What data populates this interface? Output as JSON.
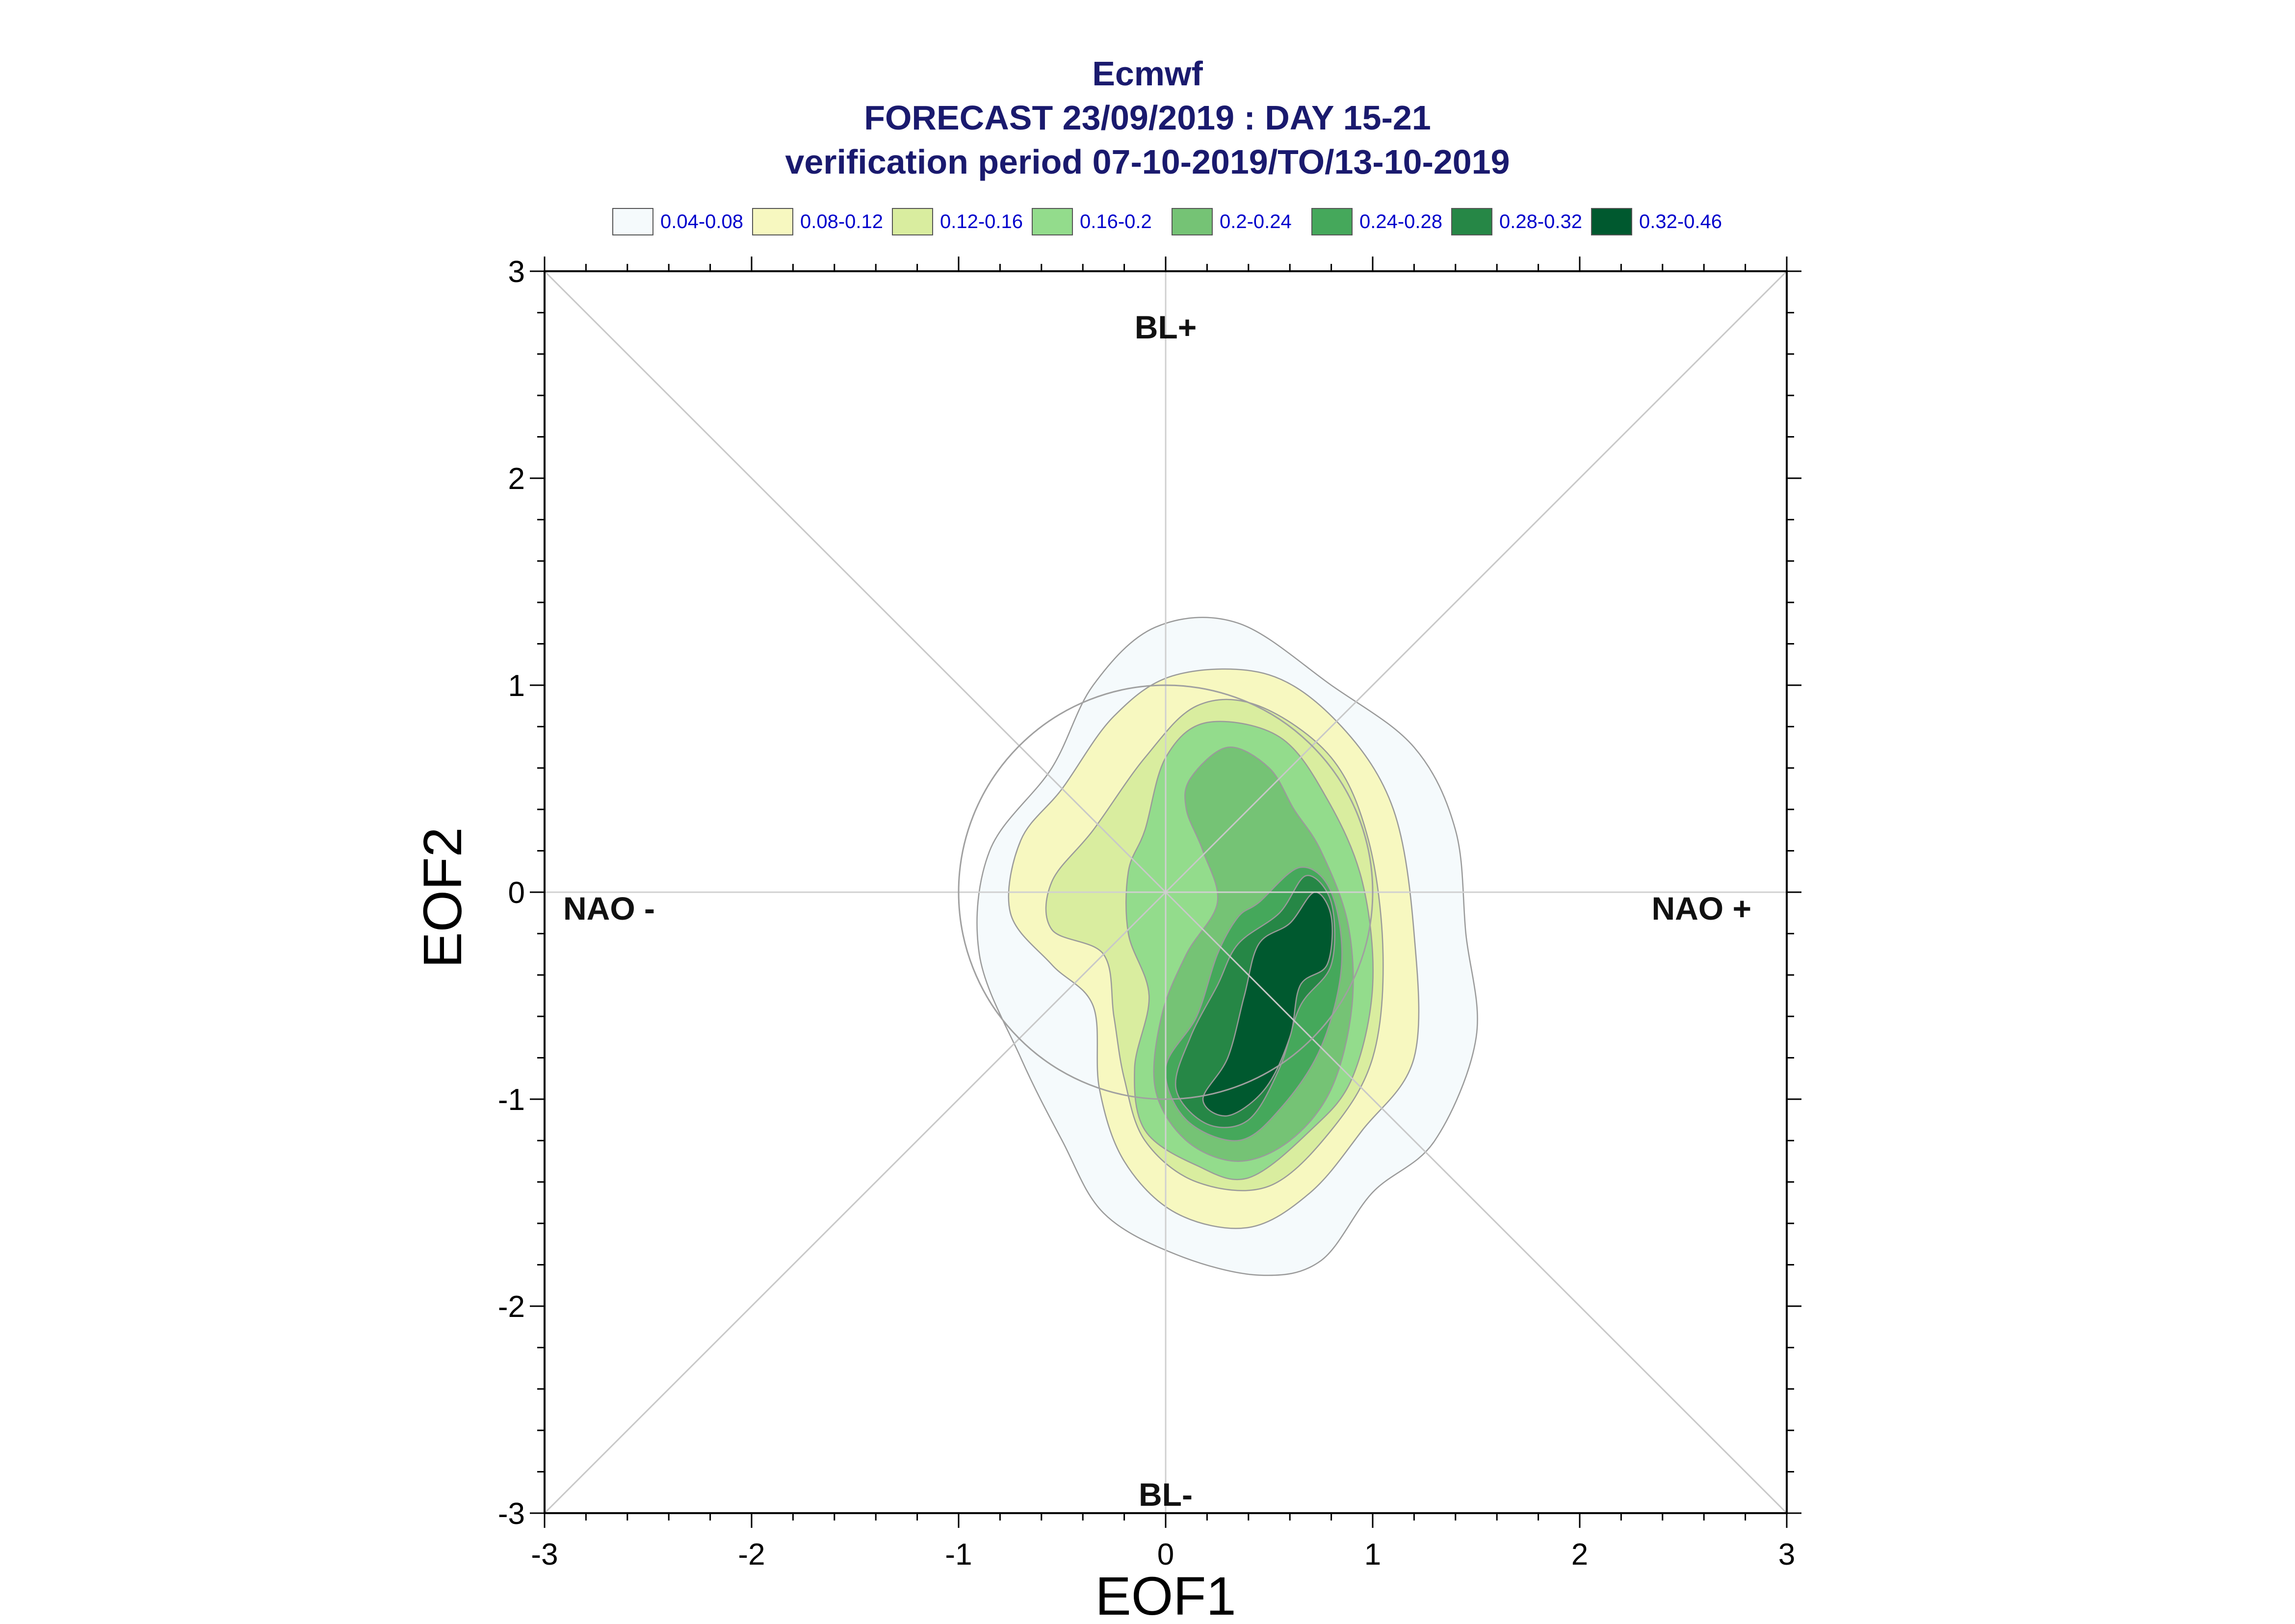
{
  "chart_data": {
    "type": "contour",
    "title": "Ecmwf",
    "subtitle_lines": [
      "FORECAST 23/09/2019 : DAY 15-21",
      "verification period 07-10-2019/TO/13-10-2019"
    ],
    "xlabel": "EOF1",
    "ylabel": "EOF2",
    "xlim": [
      -3,
      3
    ],
    "ylim": [
      -3,
      3
    ],
    "x_ticks": [
      "-3",
      "-2",
      "-1",
      "0",
      "1",
      "2",
      "3"
    ],
    "y_ticks": [
      "3",
      "2",
      "1",
      "0",
      "-1",
      "-2",
      "-3"
    ],
    "regime_labels": {
      "top": "BL+",
      "bottom": "BL-",
      "left": "NAO -",
      "right": "NAO +"
    },
    "reference_circle": {
      "center": [
        0,
        0
      ],
      "radius": 1
    },
    "diagonals": true,
    "grid": false,
    "legend_position": "top",
    "legend": [
      {
        "label": "0.04-0.08",
        "color": "#f5fafc"
      },
      {
        "label": "0.08-0.12",
        "color": "#f7f8c0"
      },
      {
        "label": "0.12-0.16",
        "color": "#d9ed9f"
      },
      {
        "label": "0.16-0.2",
        "color": "#93dc8c"
      },
      {
        "label": "0.2-0.24",
        "color": "#75c375"
      },
      {
        "label": "0.24-0.28",
        "color": "#45a85b"
      },
      {
        "label": "0.28-0.32",
        "color": "#268746"
      },
      {
        "label": "0.32-0.46",
        "color": "#00592f"
      }
    ],
    "contours": [
      {
        "level": "0.04-0.08",
        "points": [
          [
            -0.55,
            0.6
          ],
          [
            -0.35,
            1.0
          ],
          [
            -0.05,
            1.28
          ],
          [
            0.35,
            1.3
          ],
          [
            0.8,
            1.0
          ],
          [
            1.2,
            0.7
          ],
          [
            1.4,
            0.3
          ],
          [
            1.45,
            -0.2
          ],
          [
            1.5,
            -0.7
          ],
          [
            1.3,
            -1.2
          ],
          [
            1.0,
            -1.45
          ],
          [
            0.75,
            -1.78
          ],
          [
            0.45,
            -1.85
          ],
          [
            0.05,
            -1.75
          ],
          [
            -0.3,
            -1.55
          ],
          [
            -0.5,
            -1.2
          ],
          [
            -0.7,
            -0.8
          ],
          [
            -0.9,
            -0.3
          ],
          [
            -0.85,
            0.2
          ]
        ]
      },
      {
        "level": "0.08-0.12",
        "points": [
          [
            -0.5,
            0.5
          ],
          [
            -0.25,
            0.85
          ],
          [
            0.05,
            1.05
          ],
          [
            0.5,
            1.05
          ],
          [
            0.85,
            0.8
          ],
          [
            1.1,
            0.4
          ],
          [
            1.2,
            -0.2
          ],
          [
            1.2,
            -0.8
          ],
          [
            0.95,
            -1.15
          ],
          [
            0.7,
            -1.45
          ],
          [
            0.4,
            -1.62
          ],
          [
            0.05,
            -1.55
          ],
          [
            -0.2,
            -1.3
          ],
          [
            -0.32,
            -0.95
          ],
          [
            -0.35,
            -0.55
          ],
          [
            -0.55,
            -0.35
          ],
          [
            -0.75,
            -0.1
          ],
          [
            -0.7,
            0.25
          ]
        ]
      },
      {
        "level": "0.12-0.16",
        "points": [
          [
            -0.35,
            0.3
          ],
          [
            -0.1,
            0.65
          ],
          [
            0.15,
            0.9
          ],
          [
            0.45,
            0.9
          ],
          [
            0.8,
            0.65
          ],
          [
            0.98,
            0.25
          ],
          [
            1.05,
            -0.3
          ],
          [
            1.0,
            -0.8
          ],
          [
            0.8,
            -1.15
          ],
          [
            0.5,
            -1.42
          ],
          [
            0.15,
            -1.4
          ],
          [
            -0.1,
            -1.2
          ],
          [
            -0.2,
            -0.9
          ],
          [
            -0.25,
            -0.6
          ],
          [
            -0.3,
            -0.3
          ],
          [
            -0.55,
            -0.18
          ],
          [
            -0.55,
            0.05
          ]
        ]
      },
      {
        "level": "0.16-0.2",
        "points": [
          [
            -0.1,
            0.3
          ],
          [
            0.0,
            0.65
          ],
          [
            0.2,
            0.82
          ],
          [
            0.55,
            0.75
          ],
          [
            0.78,
            0.45
          ],
          [
            0.95,
            0.05
          ],
          [
            1.0,
            -0.45
          ],
          [
            0.9,
            -0.9
          ],
          [
            0.7,
            -1.15
          ],
          [
            0.4,
            -1.38
          ],
          [
            0.15,
            -1.32
          ],
          [
            -0.1,
            -1.15
          ],
          [
            -0.15,
            -0.85
          ],
          [
            -0.08,
            -0.5
          ],
          [
            -0.18,
            -0.2
          ],
          [
            -0.18,
            0.1
          ]
        ]
      },
      {
        "level": "0.2-0.24",
        "points": [
          [
            0.12,
            0.55
          ],
          [
            0.3,
            0.7
          ],
          [
            0.5,
            0.6
          ],
          [
            0.62,
            0.4
          ],
          [
            0.75,
            0.2
          ],
          [
            0.88,
            -0.15
          ],
          [
            0.9,
            -0.55
          ],
          [
            0.8,
            -0.95
          ],
          [
            0.6,
            -1.2
          ],
          [
            0.35,
            -1.3
          ],
          [
            0.1,
            -1.2
          ],
          [
            -0.05,
            -0.95
          ],
          [
            -0.02,
            -0.6
          ],
          [
            0.1,
            -0.3
          ],
          [
            0.25,
            -0.05
          ],
          [
            0.18,
            0.2
          ],
          [
            0.1,
            0.4
          ]
        ]
      },
      {
        "level": "0.24-0.28",
        "points": [
          [
            0.45,
            -0.05
          ],
          [
            0.65,
            0.12
          ],
          [
            0.8,
            0.0
          ],
          [
            0.85,
            -0.35
          ],
          [
            0.75,
            -0.75
          ],
          [
            0.55,
            -1.05
          ],
          [
            0.35,
            -1.2
          ],
          [
            0.1,
            -1.1
          ],
          [
            0.0,
            -0.85
          ],
          [
            0.15,
            -0.6
          ],
          [
            0.25,
            -0.3
          ],
          [
            0.35,
            -0.12
          ]
        ]
      },
      {
        "level": "0.28-0.32",
        "points": [
          [
            0.55,
            -0.1
          ],
          [
            0.68,
            0.08
          ],
          [
            0.8,
            -0.05
          ],
          [
            0.8,
            -0.35
          ],
          [
            0.65,
            -0.55
          ],
          [
            0.55,
            -0.85
          ],
          [
            0.4,
            -1.1
          ],
          [
            0.2,
            -1.12
          ],
          [
            0.05,
            -0.95
          ],
          [
            0.12,
            -0.7
          ],
          [
            0.25,
            -0.45
          ],
          [
            0.35,
            -0.25
          ]
        ]
      },
      {
        "level": "0.32-0.46",
        "points": [
          [
            0.6,
            -0.15
          ],
          [
            0.72,
            0.0
          ],
          [
            0.8,
            -0.12
          ],
          [
            0.78,
            -0.35
          ],
          [
            0.65,
            -0.45
          ],
          [
            0.6,
            -0.7
          ],
          [
            0.48,
            -0.95
          ],
          [
            0.3,
            -1.08
          ],
          [
            0.18,
            -1.0
          ],
          [
            0.3,
            -0.8
          ],
          [
            0.38,
            -0.5
          ],
          [
            0.45,
            -0.25
          ]
        ]
      }
    ]
  }
}
